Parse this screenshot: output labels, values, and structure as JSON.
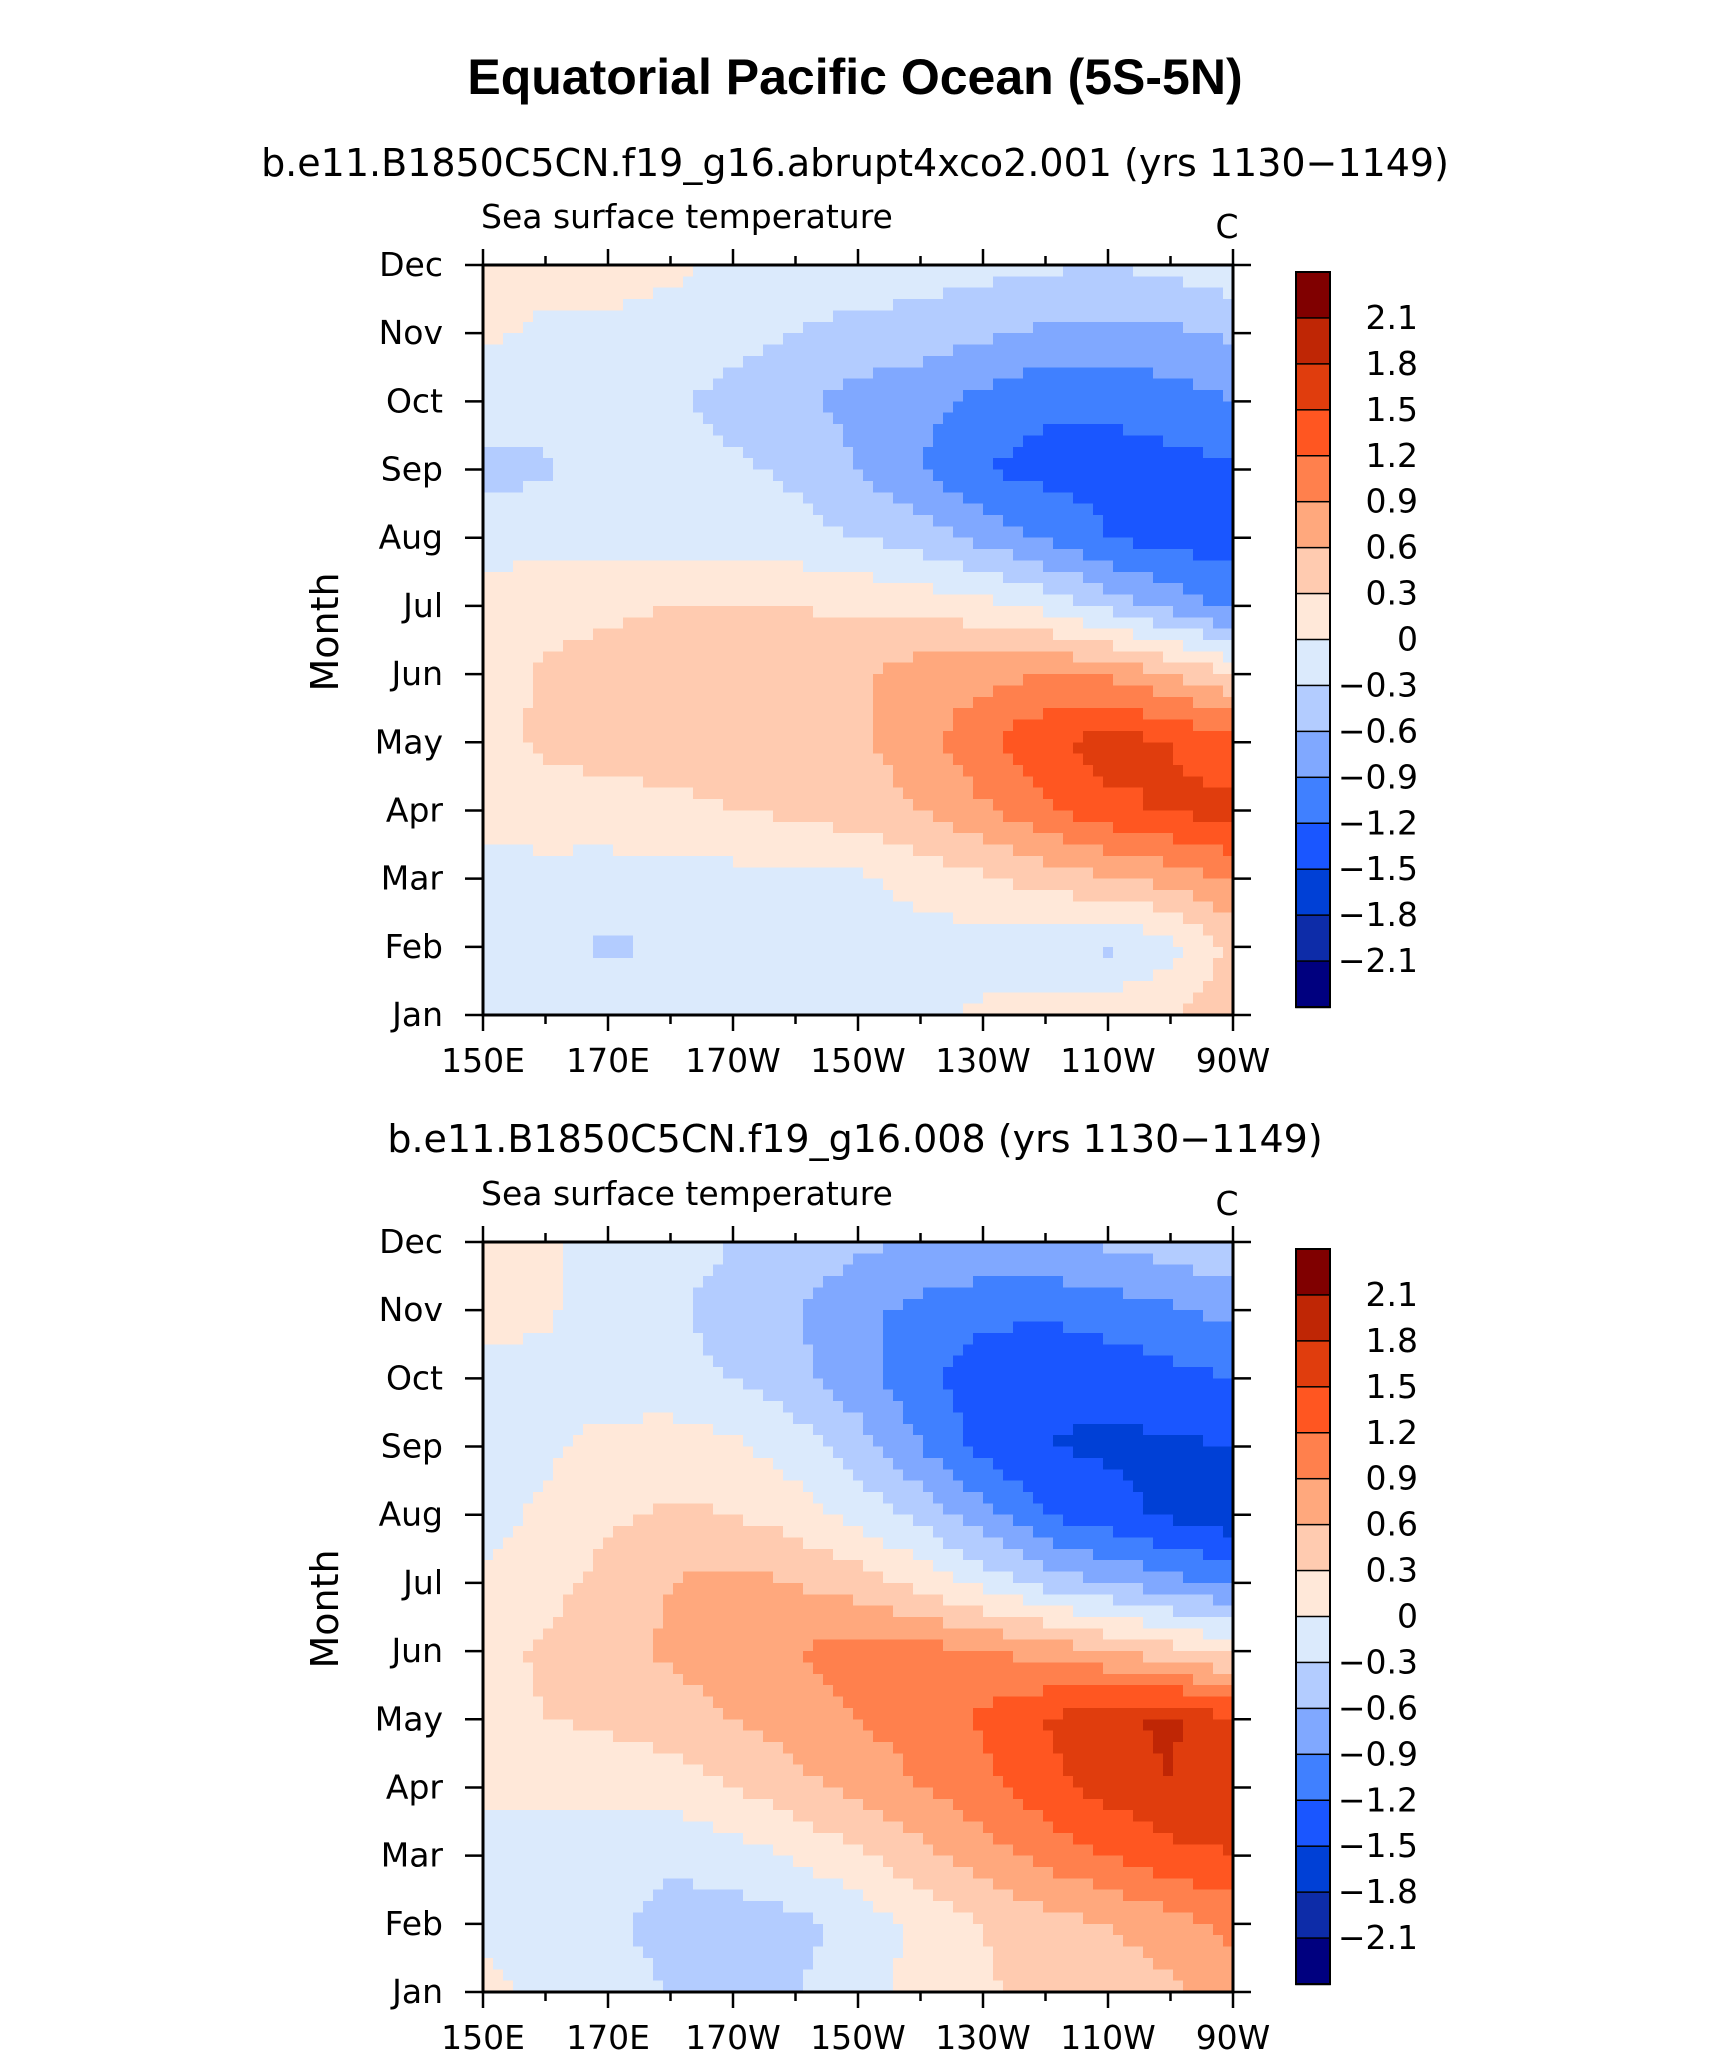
{
  "title": "Equatorial Pacific Ocean (5S-5N)",
  "colors": {
    "levels": [
      "#00007f",
      "#0d2ca8",
      "#0040d6",
      "#1a56ff",
      "#4080ff",
      "#80a8ff",
      "#b3ccff",
      "#dbeafc",
      "#ffe8d9",
      "#ffcbb0",
      "#ffa87d",
      "#ff804d",
      "#ff5621",
      "#e03d0d",
      "#bf2605",
      "#800000"
    ]
  },
  "chart_data": [
    {
      "type": "heatmap",
      "panel_title": "b.e11.B1850C5CN.f19_g16.abrupt4xco2.001 (yrs 1130−1149)",
      "left_label": "Sea surface temperature",
      "right_label": "C",
      "ylabel": "Month",
      "x_ticks": [
        "150E",
        "170E",
        "170W",
        "150W",
        "130W",
        "110W",
        "90W"
      ],
      "x_lon": [
        150,
        170,
        190,
        210,
        230,
        250,
        270
      ],
      "y_ticks": [
        "Jan",
        "Feb",
        "Mar",
        "Apr",
        "May",
        "Jun",
        "Jul",
        "Aug",
        "Sep",
        "Oct",
        "Nov",
        "Dec"
      ],
      "xlim": [
        150,
        270
      ],
      "colorbar_labels": [
        "2.1",
        "1.8",
        "1.5",
        "1.2",
        "0.9",
        "0.6",
        "0.3",
        "0",
        "−0.3",
        "−0.6",
        "−0.9",
        "−1.2",
        "−1.5",
        "−1.8",
        "−2.1"
      ],
      "levels": [
        -2.1,
        -1.8,
        -1.5,
        -1.2,
        -0.9,
        -0.6,
        -0.3,
        0,
        0.3,
        0.6,
        0.9,
        1.2,
        1.5,
        1.8,
        2.1
      ],
      "grid_lon": [
        150,
        160,
        170,
        180,
        190,
        200,
        210,
        220,
        230,
        240,
        250,
        260,
        270
      ],
      "values": [
        [
          -0.1,
          -0.1,
          -0.15,
          -0.15,
          -0.15,
          -0.1,
          -0.05,
          -0.05,
          0.05,
          0.1,
          0.15,
          0.3,
          0.45
        ],
        [
          -0.1,
          -0.2,
          -0.35,
          -0.25,
          -0.15,
          -0.1,
          -0.1,
          -0.1,
          -0.15,
          -0.25,
          -0.35,
          -0.1,
          0.4
        ],
        [
          -0.1,
          -0.1,
          -0.15,
          -0.1,
          -0.1,
          -0.05,
          -0.05,
          0.1,
          0.25,
          0.45,
          0.55,
          0.7,
          0.95
        ],
        [
          0.1,
          0.15,
          0.2,
          0.25,
          0.3,
          0.35,
          0.45,
          0.6,
          0.85,
          1.15,
          1.4,
          1.55,
          1.6
        ],
        [
          0.2,
          0.35,
          0.4,
          0.4,
          0.4,
          0.45,
          0.55,
          0.75,
          1.15,
          1.45,
          1.65,
          1.5,
          1.3
        ],
        [
          0.15,
          0.35,
          0.4,
          0.45,
          0.45,
          0.45,
          0.55,
          0.75,
          0.8,
          0.9,
          0.85,
          0.6,
          0.3
        ],
        [
          0.1,
          0.2,
          0.25,
          0.3,
          0.3,
          0.3,
          0.25,
          0.2,
          0.1,
          -0.1,
          -0.4,
          -0.7,
          -1.0
        ],
        [
          -0.1,
          -0.1,
          -0.1,
          -0.1,
          -0.15,
          -0.2,
          -0.3,
          -0.45,
          -0.7,
          -0.95,
          -1.2,
          -1.35,
          -1.3
        ],
        [
          -0.4,
          -0.35,
          -0.15,
          -0.2,
          -0.25,
          -0.35,
          -0.6,
          -0.9,
          -1.2,
          -1.3,
          -1.3,
          -1.3,
          -1.25
        ],
        [
          -0.15,
          -0.15,
          -0.15,
          -0.25,
          -0.4,
          -0.55,
          -0.7,
          -0.8,
          -1.0,
          -1.15,
          -1.15,
          -1.05,
          -0.9
        ],
        [
          0.05,
          -0.05,
          -0.05,
          -0.1,
          -0.2,
          -0.3,
          -0.4,
          -0.45,
          -0.55,
          -0.65,
          -0.7,
          -0.65,
          -0.55
        ],
        [
          0.15,
          0.1,
          0.1,
          0.05,
          -0.05,
          -0.1,
          -0.1,
          -0.15,
          -0.2,
          -0.25,
          -0.3,
          -0.2,
          -0.1
        ]
      ]
    },
    {
      "type": "heatmap",
      "panel_title": "b.e11.B1850C5CN.f19_g16.008 (yrs 1130−1149)",
      "left_label": "Sea surface temperature",
      "right_label": "C",
      "ylabel": "Month",
      "x_ticks": [
        "150E",
        "170E",
        "170W",
        "150W",
        "130W",
        "110W",
        "90W"
      ],
      "x_lon": [
        150,
        170,
        190,
        210,
        230,
        250,
        270
      ],
      "y_ticks": [
        "Jan",
        "Feb",
        "Mar",
        "Apr",
        "May",
        "Jun",
        "Jul",
        "Aug",
        "Sep",
        "Oct",
        "Nov",
        "Dec"
      ],
      "xlim": [
        150,
        270
      ],
      "colorbar_labels": [
        "2.1",
        "1.8",
        "1.5",
        "1.2",
        "0.9",
        "0.6",
        "0.3",
        "0",
        "−0.3",
        "−0.6",
        "−0.9",
        "−1.2",
        "−1.5",
        "−1.8",
        "−2.1"
      ],
      "levels": [
        -2.1,
        -1.8,
        -1.5,
        -1.2,
        -0.9,
        -0.6,
        -0.3,
        0,
        0.3,
        0.6,
        0.9,
        1.2,
        1.5,
        1.8,
        2.1
      ],
      "grid_lon": [
        150,
        160,
        170,
        180,
        190,
        200,
        210,
        220,
        230,
        240,
        250,
        260,
        270
      ],
      "values": [
        [
          0.1,
          -0.1,
          -0.2,
          -0.3,
          -0.35,
          -0.3,
          -0.15,
          0.1,
          0.25,
          0.4,
          0.45,
          0.55,
          0.7
        ],
        [
          -0.1,
          -0.15,
          -0.25,
          -0.4,
          -0.45,
          -0.4,
          -0.2,
          0.1,
          0.3,
          0.5,
          0.6,
          0.75,
          1.0
        ],
        [
          -0.1,
          -0.15,
          -0.2,
          -0.25,
          -0.15,
          0.05,
          0.25,
          0.5,
          0.75,
          1.0,
          1.2,
          1.4,
          1.5
        ],
        [
          0.05,
          0.1,
          0.1,
          0.15,
          0.3,
          0.5,
          0.7,
          0.9,
          1.1,
          1.4,
          1.6,
          1.8,
          1.6
        ],
        [
          0.2,
          0.3,
          0.35,
          0.45,
          0.6,
          0.75,
          0.9,
          1.05,
          1.25,
          1.5,
          1.75,
          1.85,
          1.5
        ],
        [
          0.2,
          0.35,
          0.5,
          0.65,
          0.8,
          0.9,
          1.0,
          1.0,
          0.9,
          0.8,
          0.6,
          0.4,
          0.2
        ],
        [
          0.05,
          0.2,
          0.4,
          0.6,
          0.7,
          0.6,
          0.45,
          0.2,
          -0.1,
          -0.4,
          -0.6,
          -0.8,
          -0.95
        ],
        [
          -0.1,
          0.05,
          0.25,
          0.35,
          0.3,
          0.15,
          -0.1,
          -0.4,
          -0.8,
          -1.2,
          -1.4,
          -1.55,
          -1.7
        ],
        [
          -0.15,
          -0.05,
          0.1,
          0.15,
          0.05,
          -0.15,
          -0.45,
          -0.9,
          -1.3,
          -1.5,
          -1.55,
          -1.55,
          -1.5
        ],
        [
          -0.1,
          -0.1,
          -0.15,
          -0.2,
          -0.3,
          -0.5,
          -0.8,
          -1.1,
          -1.4,
          -1.45,
          -1.4,
          -1.3,
          -1.2
        ],
        [
          0.1,
          0.05,
          -0.15,
          -0.25,
          -0.45,
          -0.6,
          -0.8,
          -1.0,
          -1.1,
          -1.15,
          -1.05,
          -0.95,
          -0.8
        ],
        [
          0.15,
          0.05,
          -0.1,
          -0.15,
          -0.3,
          -0.4,
          -0.55,
          -0.6,
          -0.65,
          -0.6,
          -0.55,
          -0.45,
          -0.3
        ]
      ]
    }
  ]
}
